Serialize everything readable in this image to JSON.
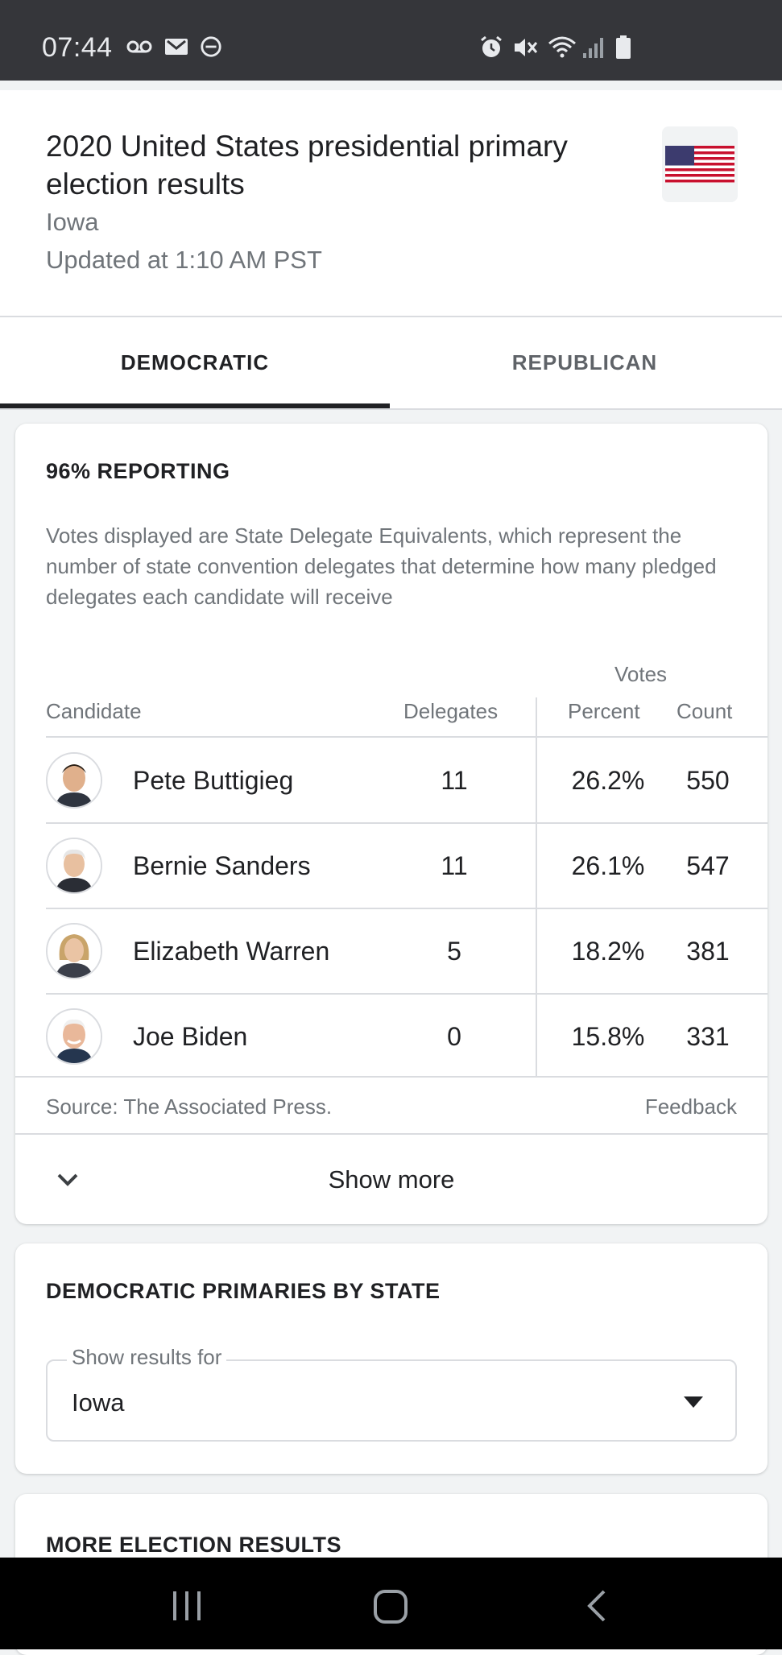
{
  "status_bar": {
    "time": "07:44",
    "left_icons": [
      "voicemail-icon",
      "gmail-icon",
      "dnd-icon"
    ],
    "right_icons": [
      "alarm-icon",
      "mute-icon",
      "wifi-icon",
      "signal-icon",
      "battery-icon"
    ]
  },
  "header": {
    "title": "2020 United States presidential primary election results",
    "subtitle": "Iowa",
    "updated": "Updated at 1:10 AM PST",
    "flag_icon": "us-flag-icon"
  },
  "tabs": [
    {
      "label": "DEMOCRATIC",
      "selected": true
    },
    {
      "label": "REPUBLICAN",
      "selected": false
    }
  ],
  "results": {
    "reporting": "96% REPORTING",
    "note": "Votes displayed are State Delegate Equivalents, which represent the number of state convention delegates that determine how many pledged delegates each candidate will receive",
    "votes_header": "Votes",
    "columns": {
      "candidate": "Candidate",
      "delegates": "Delegates",
      "percent": "Percent",
      "count": "Count"
    },
    "rows": [
      {
        "name": "Pete Buttigieg",
        "delegates": "11",
        "percent": "26.2%",
        "count": "550"
      },
      {
        "name": "Bernie Sanders",
        "delegates": "11",
        "percent": "26.1%",
        "count": "547"
      },
      {
        "name": "Elizabeth Warren",
        "delegates": "5",
        "percent": "18.2%",
        "count": "381"
      },
      {
        "name": "Joe Biden",
        "delegates": "0",
        "percent": "15.8%",
        "count": "331"
      }
    ],
    "source": "Source: The Associated Press.",
    "feedback": "Feedback",
    "show_more": "Show more"
  },
  "by_state": {
    "title": "DEMOCRATIC PRIMARIES BY STATE",
    "select_label": "Show results for",
    "select_value": "Iowa"
  },
  "more_results": {
    "title": "MORE ELECTION RESULTS"
  },
  "colors": {
    "status_bar": "#35363a",
    "text_primary": "#202124",
    "text_secondary": "#70757a",
    "divider": "#dadce0"
  }
}
